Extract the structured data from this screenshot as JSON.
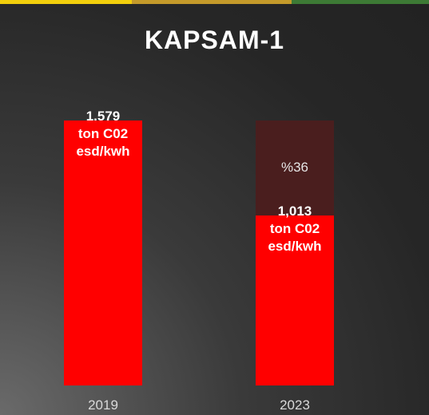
{
  "chart_data": {
    "type": "bar",
    "title": "KAPSAM-1",
    "categories": [
      "2019",
      "2023"
    ],
    "series": [
      {
        "color": "#ff0000",
        "values": [
          1.579,
          1.013
        ],
        "value_labels": [
          "1.579\nton C02\nesd/kwh",
          "1,013\nton C02\nesd/kwh"
        ]
      },
      {
        "color": "#4a1e1e",
        "values": [
          null,
          0.566
        ]
      }
    ],
    "annotations": [
      "%36"
    ],
    "stacked": true
  }
}
